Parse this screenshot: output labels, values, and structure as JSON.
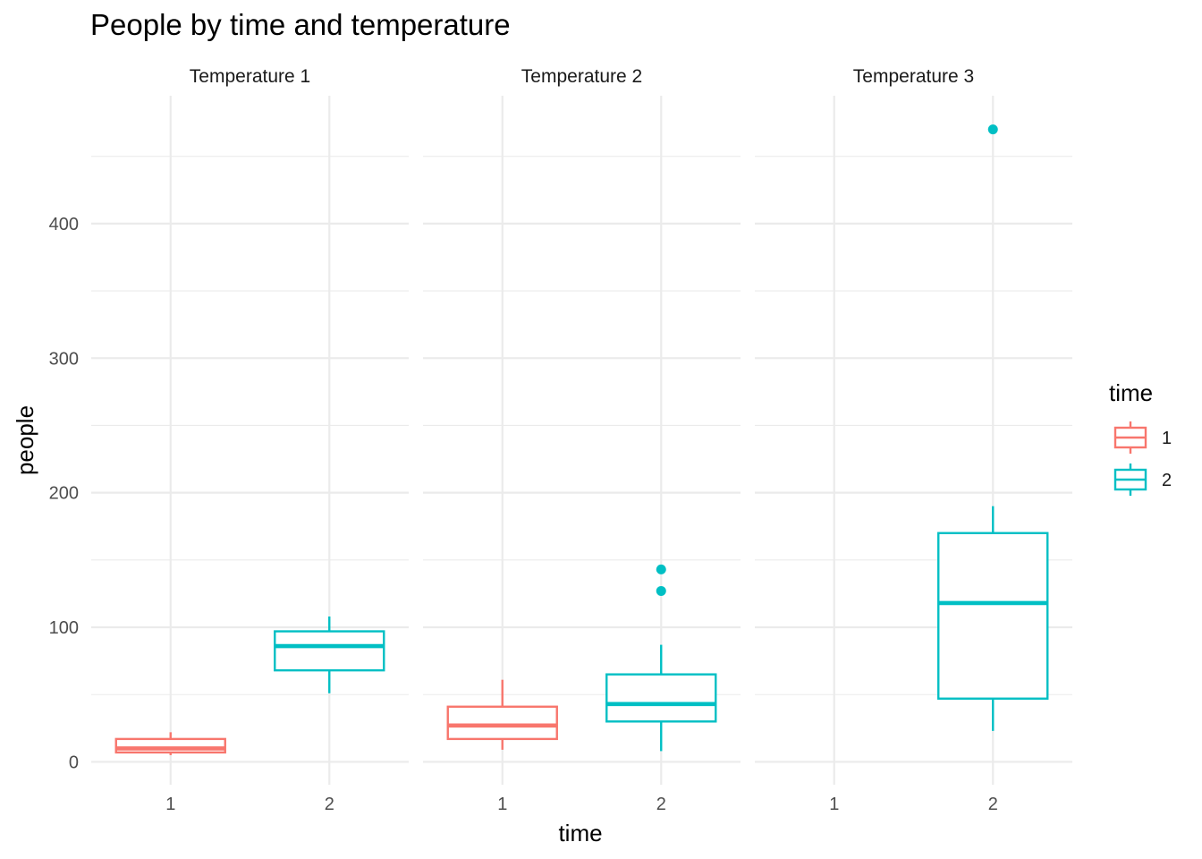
{
  "chart_data": {
    "type": "box",
    "title": "People by time and temperature",
    "xlabel": "time",
    "ylabel": "people",
    "categories": [
      "1",
      "2"
    ],
    "ylim": [
      -17,
      495
    ],
    "y_ticks": [
      0,
      100,
      200,
      300,
      400
    ],
    "grid": true,
    "legend": {
      "title": "time",
      "position": "right",
      "entries": [
        {
          "label": "1",
          "color": "#F8766D"
        },
        {
          "label": "2",
          "color": "#00BFC4"
        }
      ]
    },
    "facets": [
      {
        "label": "Temperature 1",
        "boxes": [
          {
            "x": "1",
            "whisker_low": 5,
            "q1": 7,
            "median": 10,
            "q3": 17,
            "whisker_high": 22,
            "outliers": []
          },
          {
            "x": "2",
            "whisker_low": 51,
            "q1": 68,
            "median": 86,
            "q3": 97,
            "whisker_high": 108,
            "outliers": []
          }
        ]
      },
      {
        "label": "Temperature 2",
        "boxes": [
          {
            "x": "1",
            "whisker_low": 9,
            "q1": 17,
            "median": 27,
            "q3": 41,
            "whisker_high": 61,
            "outliers": []
          },
          {
            "x": "2",
            "whisker_low": 8,
            "q1": 30,
            "median": 43,
            "q3": 65,
            "whisker_high": 87,
            "outliers": [
              127,
              143
            ]
          }
        ]
      },
      {
        "label": "Temperature 3",
        "boxes": [
          {
            "x": "2",
            "whisker_low": 23,
            "q1": 47,
            "median": 118,
            "q3": 170,
            "whisker_high": 190,
            "outliers": [
              470
            ]
          }
        ]
      }
    ]
  }
}
